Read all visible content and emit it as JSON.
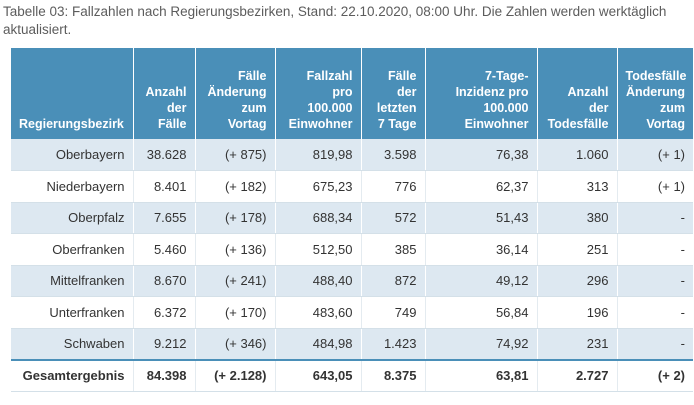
{
  "caption": "Tabelle 03: Fallzahlen nach Regierungsbezirken, Stand: 22.10.2020, 08:00 Uhr. Die Zahlen werden werktäglich aktualisiert.",
  "columns": [
    {
      "l1": "Regierungsbezirk"
    },
    {
      "l1": "Anzahl",
      "l2": "der",
      "l3": "Fälle"
    },
    {
      "l1": "Fälle",
      "l2": "Änderung",
      "l3": "zum",
      "l4": "Vortag"
    },
    {
      "l1": "Fallzahl pro",
      "l2": "100.000",
      "l3": "Einwohner"
    },
    {
      "l1": "Fälle",
      "l2": "der",
      "l3": "letzten",
      "l4": "7 Tage"
    },
    {
      "l1": "7-Tage-",
      "l2": "Inzidenz pro",
      "l3": "100.000",
      "l4": "Einwohner"
    },
    {
      "l1": "Anzahl der",
      "l2": "Todesfälle"
    },
    {
      "l1": "Todesfälle",
      "l2": "Änderung",
      "l3": "zum Vortag"
    }
  ],
  "rows": [
    [
      "Oberbayern",
      "38.628",
      "(+ 875)",
      "819,98",
      "3.598",
      "76,38",
      "1.060",
      "(+ 1)"
    ],
    [
      "Niederbayern",
      "8.401",
      "(+ 182)",
      "675,23",
      "776",
      "62,37",
      "313",
      "(+ 1)"
    ],
    [
      "Oberpfalz",
      "7.655",
      "(+ 178)",
      "688,34",
      "572",
      "51,43",
      "380",
      "-"
    ],
    [
      "Oberfranken",
      "5.460",
      "(+ 136)",
      "512,50",
      "385",
      "36,14",
      "251",
      "-"
    ],
    [
      "Mittelfranken",
      "8.670",
      "(+ 241)",
      "488,40",
      "872",
      "49,12",
      "296",
      "-"
    ],
    [
      "Unterfranken",
      "6.372",
      "(+ 170)",
      "483,60",
      "749",
      "56,84",
      "196",
      "-"
    ],
    [
      "Schwaben",
      "9.212",
      "(+ 346)",
      "484,98",
      "1.423",
      "74,92",
      "231",
      "-"
    ]
  ],
  "total": [
    "Gesamtergebnis",
    "84.398",
    "(+ 2.128)",
    "643,05",
    "8.375",
    "63,81",
    "2.727",
    "(+ 2)"
  ]
}
